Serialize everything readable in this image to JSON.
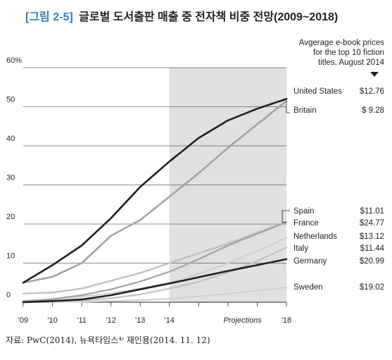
{
  "figure": {
    "title_prefix": "[그림 2-5]",
    "title_main": "글로벌 도서출판 매출 중 전자책 비중 전망(2009~2018)",
    "source": "자료: PwC(2014), 뉴욕타임스⁴⁾ 재인용(2014. 11. 12)",
    "note_lines": [
      "Avgerage e-book prices",
      "for the top 10 fiction",
      "titles, August 2014"
    ]
  },
  "chart_data": {
    "type": "line",
    "x": [
      2009,
      2010,
      2011,
      2012,
      2013,
      2014,
      2015,
      2016,
      2017,
      2018
    ],
    "x_tick_labels": [
      "'09",
      "'10",
      "'11",
      "'12",
      "'13",
      "'14",
      "Projections",
      "'18"
    ],
    "x_tick_years": [
      2009,
      2010,
      2011,
      2012,
      2013,
      2014,
      2016.5,
      2018
    ],
    "ylim": [
      0,
      60
    ],
    "y_ticks": [
      0,
      10,
      20,
      30,
      40,
      50,
      60
    ],
    "y_tick_labels": [
      "0",
      "10",
      "20",
      "30",
      "40",
      "50",
      "60%"
    ],
    "projection_start": 2014,
    "grid": true,
    "series": [
      {
        "name": "United States",
        "price": "$12.76",
        "color": "#231f20",
        "width": 2.6,
        "values": [
          5,
          9.5,
          14.5,
          21.5,
          29.5,
          36,
          42,
          46.5,
          49.5,
          52
        ]
      },
      {
        "name": "Britain",
        "price": "$ 9.28",
        "color": "#a3a3a3",
        "width": 2.6,
        "values": [
          5,
          6.5,
          10,
          17,
          21,
          27,
          33,
          39.5,
          45.5,
          51.5
        ]
      },
      {
        "name": "Spain",
        "price": "$11.01",
        "color": "#a3a3a3",
        "width": 2.2,
        "values": [
          0.3,
          0.8,
          1.8,
          3.3,
          5.3,
          7.8,
          11,
          14.5,
          17.5,
          20.5
        ]
      },
      {
        "name": "France",
        "price": "$24.77",
        "color": "#bdbdbd",
        "width": 2.2,
        "values": [
          2.2,
          2.5,
          3.5,
          5.5,
          7.5,
          10,
          12.5,
          15,
          17.8,
          20.5
        ]
      },
      {
        "name": "Netherlands",
        "price": "$13.12",
        "color": "#d0d0d0",
        "width": 2.2,
        "values": [
          0.3,
          0.8,
          1.4,
          2.3,
          3.5,
          5,
          7.3,
          10,
          13,
          16.5
        ]
      },
      {
        "name": "Italy",
        "price": "$11.44",
        "color": "#c2c2c2",
        "width": 2.2,
        "values": [
          0,
          0.2,
          0.4,
          1,
          2,
          3.5,
          5.2,
          7.6,
          10.5,
          14
        ]
      },
      {
        "name": "Germany",
        "price": "$20.99",
        "color": "#231f20",
        "width": 2.6,
        "values": [
          0,
          0.3,
          0.7,
          1.8,
          3.3,
          4.8,
          6.4,
          8,
          9.5,
          11
        ]
      },
      {
        "name": "Sweden",
        "price": "$19.02",
        "color": "#d0d0d0",
        "width": 2.2,
        "values": [
          0,
          0.05,
          0.1,
          0.3,
          0.5,
          0.9,
          1.5,
          2.2,
          3,
          3.8
        ]
      }
    ]
  }
}
